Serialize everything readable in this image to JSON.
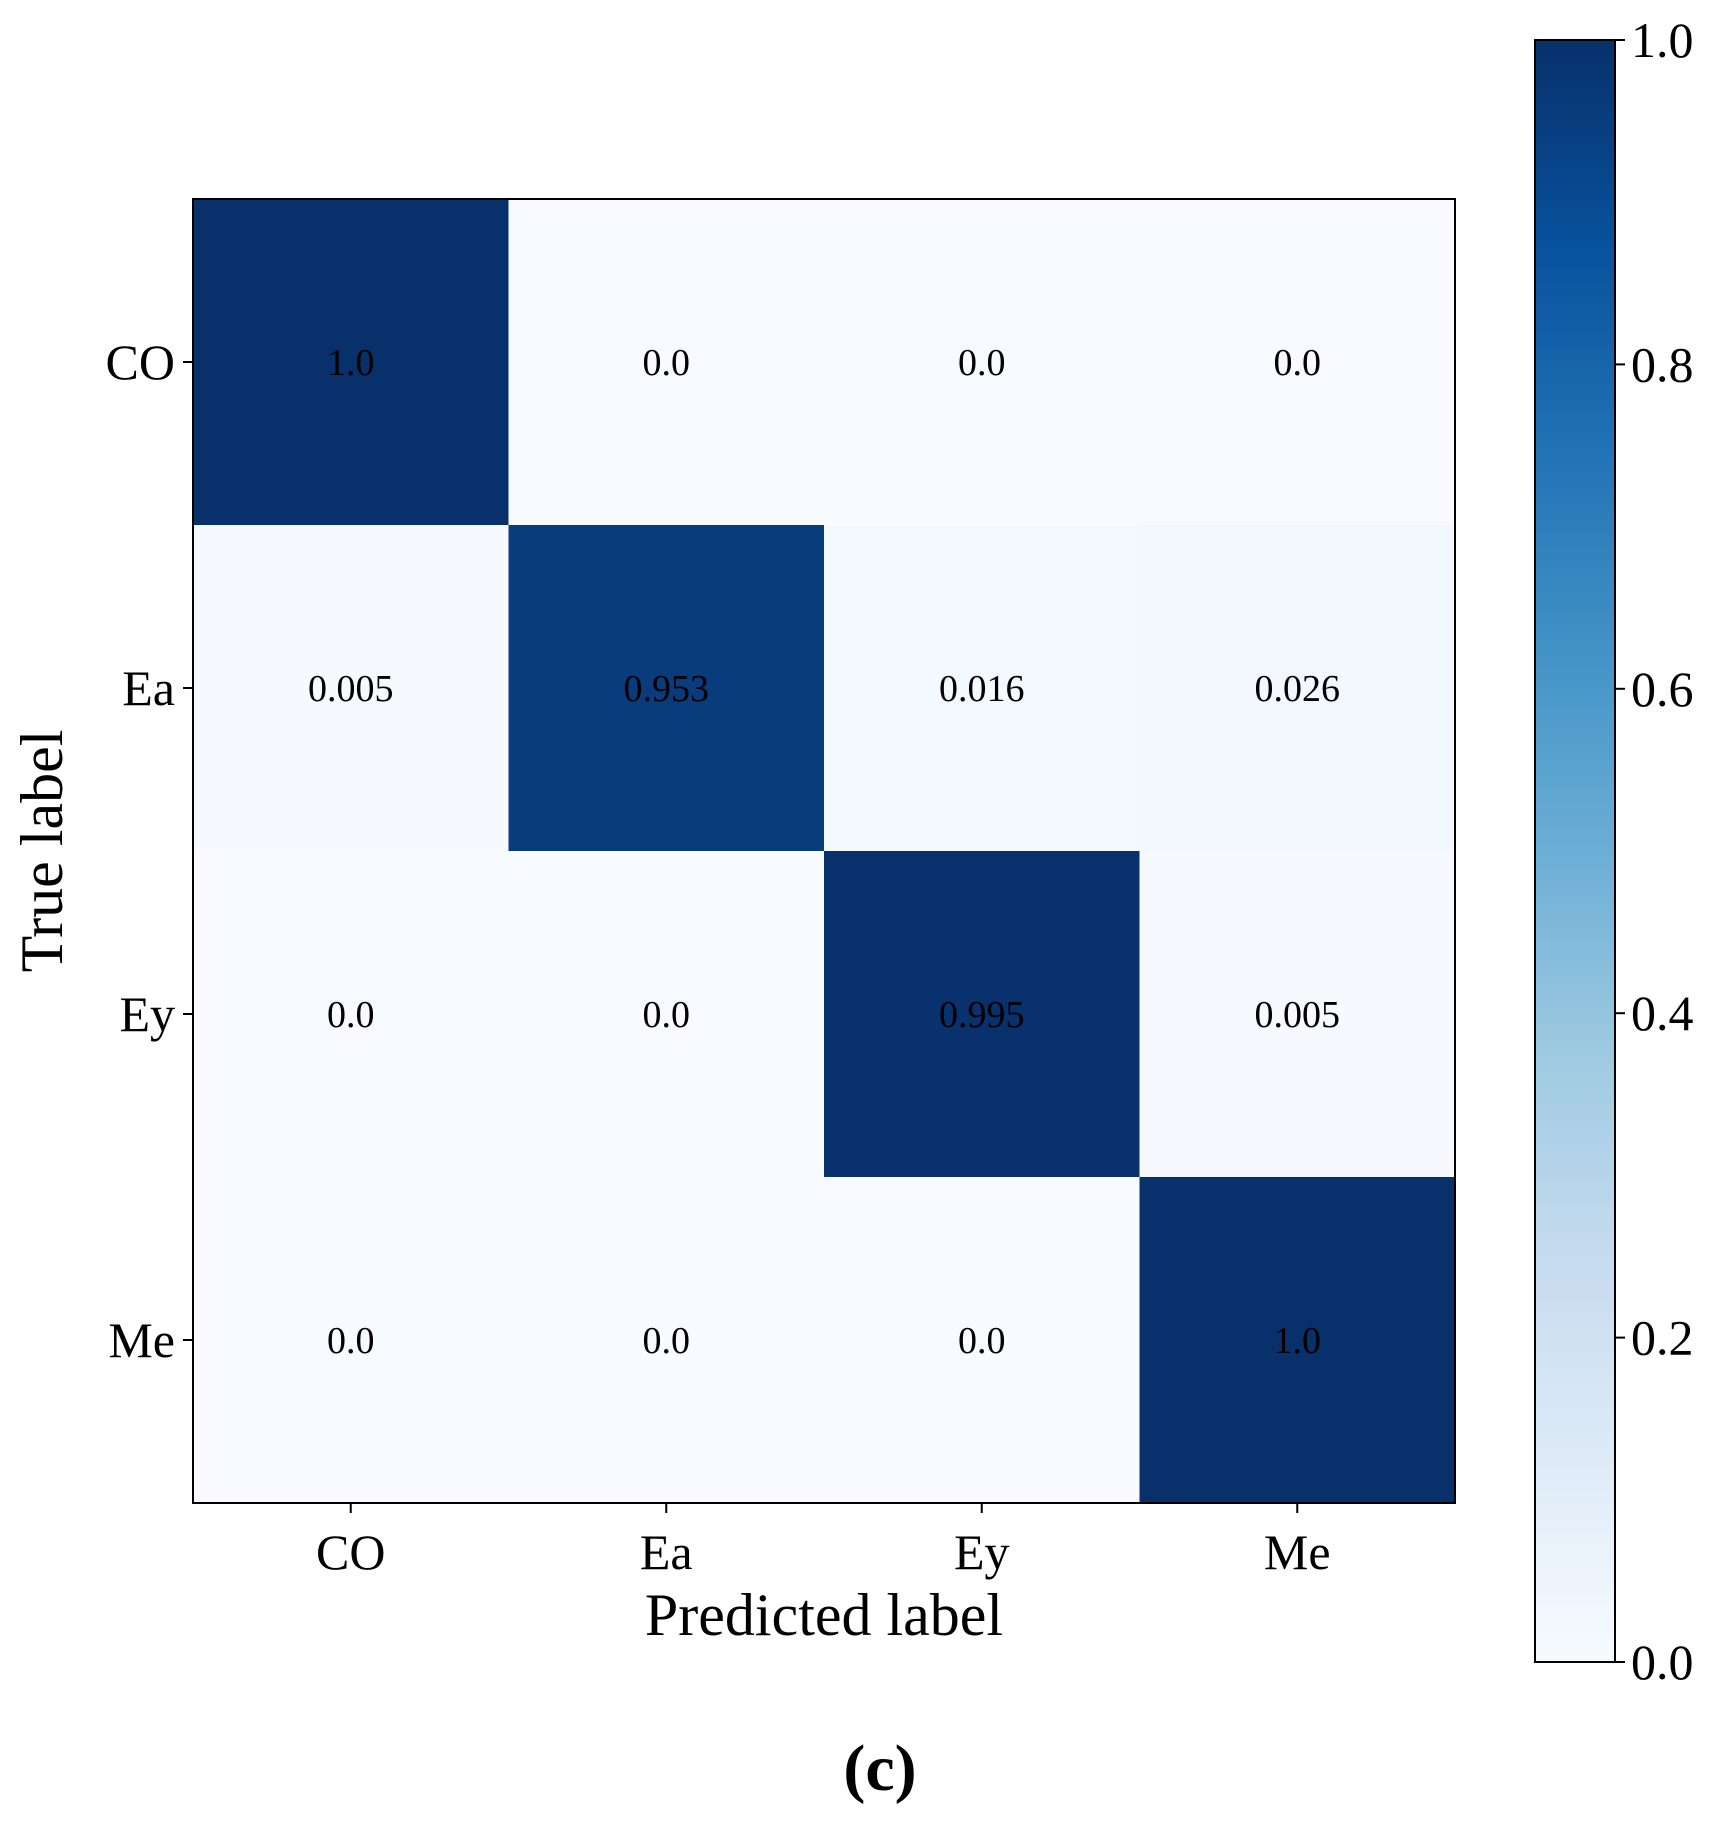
{
  "chart_data": {
    "type": "heatmap",
    "x_categories": [
      "CO",
      "Ea",
      "Ey",
      "Me"
    ],
    "y_categories": [
      "CO",
      "Ea",
      "Ey",
      "Me"
    ],
    "values": [
      [
        1.0,
        0.0,
        0.0,
        0.0
      ],
      [
        0.005,
        0.953,
        0.016,
        0.026
      ],
      [
        0.0,
        0.0,
        0.995,
        0.005
      ],
      [
        0.0,
        0.0,
        0.0,
        1.0
      ]
    ],
    "value_labels": [
      [
        "1.0",
        "0.0",
        "0.0",
        "0.0"
      ],
      [
        "0.005",
        "0.953",
        "0.016",
        "0.026"
      ],
      [
        "0.0",
        "0.0",
        "0.995",
        "0.005"
      ],
      [
        "0.0",
        "0.0",
        "0.0",
        "1.0"
      ]
    ],
    "xlabel": "Predicted label",
    "ylabel": "True label",
    "colorbar": {
      "range": [
        0.0,
        1.0
      ],
      "ticks": [
        0.0,
        0.2,
        0.4,
        0.6,
        0.8,
        1.0
      ],
      "tick_labels": [
        "0.0",
        "0.2",
        "0.4",
        "0.6",
        "0.8",
        "1.0"
      ],
      "colormap": "Blues",
      "stops": [
        "#f7fbff",
        "#deebf7",
        "#c6dbef",
        "#9ecae1",
        "#6baed6",
        "#4292c6",
        "#2171b5",
        "#08519c",
        "#08306b"
      ]
    },
    "grid": false,
    "panel_label": "(c)"
  }
}
